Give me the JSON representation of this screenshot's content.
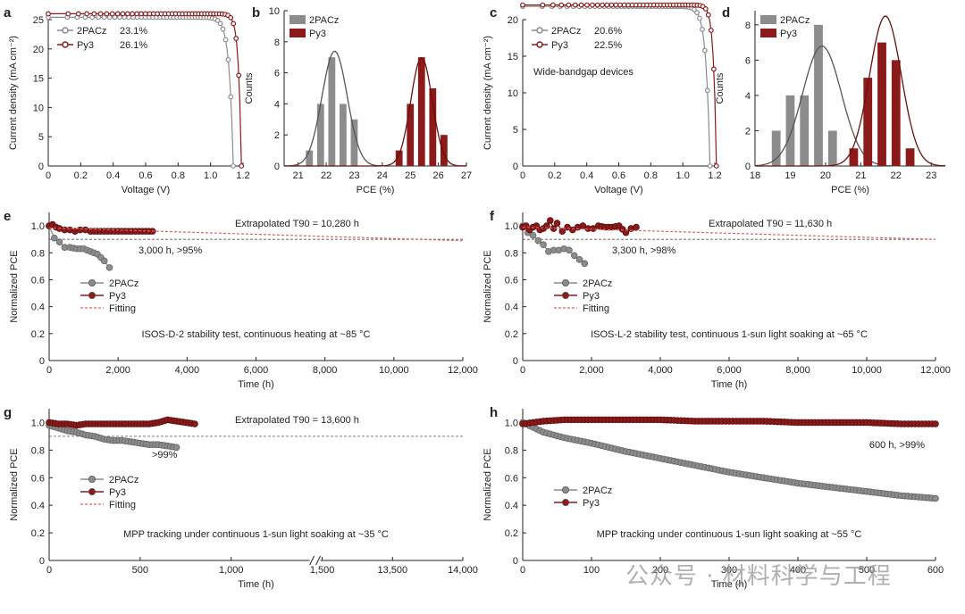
{
  "colors": {
    "gray": "#8c8c8c",
    "red": "#8b1a1a",
    "fit_red": "#e06060",
    "fit_gray": "#555555"
  },
  "watermark": "公众号 · 材料科学与工程",
  "chart_data": [
    {
      "id": "a",
      "type": "line",
      "panel_letter": "a",
      "xlabel": "Voltage (V)",
      "ylabel": "Current density (mA cm⁻²)",
      "xlim": [
        0,
        1.2
      ],
      "ylim": [
        0,
        25
      ],
      "xticks": [
        "0",
        "0.2",
        "0.4",
        "0.6",
        "0.8",
        "1.0",
        "1.2"
      ],
      "yticks": [
        "0",
        "5",
        "10",
        "15",
        "20",
        "25"
      ],
      "legend": [
        {
          "name": "2PACz",
          "value": "23.1%"
        },
        {
          "name": "Py3",
          "value": "26.1%"
        }
      ],
      "series": [
        {
          "name": "2PACz",
          "jsc": 25.4,
          "voc": 1.14,
          "n": 0.025
        },
        {
          "name": "Py3",
          "jsc": 26.0,
          "voc": 1.19,
          "n": 0.018
        }
      ]
    },
    {
      "id": "b",
      "type": "bar",
      "panel_letter": "b",
      "xlabel": "PCE (%)",
      "ylabel": "Counts",
      "xlim": [
        20.5,
        27
      ],
      "ylim": [
        0,
        10
      ],
      "xticks": [
        "21",
        "22",
        "23",
        "24",
        "25",
        "26",
        "27"
      ],
      "yticks": [
        "0",
        "2",
        "4",
        "6",
        "8",
        "10"
      ],
      "legend": [
        "2PACz",
        "Py3"
      ],
      "series": [
        {
          "name": "2PACz",
          "x": [
            21.4,
            21.8,
            22.2,
            22.6,
            23.0
          ],
          "values": [
            1,
            4,
            7,
            4,
            3
          ],
          "fit_mean": 22.3,
          "fit_sd": 0.45,
          "fit_peak": 7.4
        },
        {
          "name": "Py3",
          "x": [
            24.6,
            25.0,
            25.4,
            25.8,
            26.2
          ],
          "values": [
            1,
            4,
            7,
            5,
            2
          ],
          "fit_mean": 25.4,
          "fit_sd": 0.38,
          "fit_peak": 7.0
        }
      ]
    },
    {
      "id": "c",
      "type": "line",
      "panel_letter": "c",
      "xlabel": "Voltage (V)",
      "ylabel": "Current density (mA cm⁻²)",
      "xlim": [
        0,
        1.2
      ],
      "ylim": [
        0,
        20
      ],
      "xticks": [
        "0",
        "0.2",
        "0.4",
        "0.6",
        "0.8",
        "1.0",
        "1.2"
      ],
      "yticks": [
        "0",
        "5",
        "10",
        "15",
        "20"
      ],
      "legend": [
        {
          "name": "2PACz",
          "value": "20.6%"
        },
        {
          "name": "Py3",
          "value": "22.5%"
        }
      ],
      "annotation": "Wide-bandgap devices",
      "series": [
        {
          "name": "2PACz",
          "jsc": 21.8,
          "voc": 1.17,
          "n": 0.025
        },
        {
          "name": "Py3",
          "jsc": 22.0,
          "voc": 1.21,
          "n": 0.018
        }
      ]
    },
    {
      "id": "d",
      "type": "bar",
      "panel_letter": "d",
      "xlabel": "PCE (%)",
      "ylabel": "Counts",
      "xlim": [
        18,
        23.4
      ],
      "ylim": [
        0,
        8.8
      ],
      "xticks": [
        "18",
        "19",
        "20",
        "21",
        "22",
        "23"
      ],
      "yticks": [
        "0",
        "2",
        "4",
        "6",
        "8"
      ],
      "legend": [
        "2PACz",
        "Py3"
      ],
      "series": [
        {
          "name": "2PACz",
          "x": [
            18.6,
            19.0,
            19.4,
            19.8,
            20.2,
            20.6
          ],
          "values": [
            2,
            4,
            4,
            8,
            2,
            0
          ],
          "fit_mean": 19.9,
          "fit_sd": 0.55,
          "fit_peak": 6.8
        },
        {
          "name": "Py3",
          "x": [
            20.8,
            21.2,
            21.6,
            22.0,
            22.4
          ],
          "values": [
            1,
            5,
            7,
            6,
            1
          ],
          "fit_mean": 21.7,
          "fit_sd": 0.45,
          "fit_peak": 8.5
        }
      ]
    },
    {
      "id": "e",
      "type": "line",
      "panel_letter": "e",
      "xlabel": "Time (h)",
      "ylabel": "Normalized PCE",
      "xlim": [
        0,
        12000
      ],
      "ylim": [
        0,
        1.1
      ],
      "xticks": [
        "0",
        "2,000",
        "4,000",
        "6,000",
        "8,000",
        "10,000",
        "12,000"
      ],
      "yticks": [
        "0",
        "0.2",
        "0.4",
        "0.6",
        "0.8",
        "1.0"
      ],
      "legend": [
        "2PACz",
        "Py3",
        "Fitting"
      ],
      "annotations": [
        "Extrapolated T90 = 10,280 h",
        "3,000 h, >95%",
        "ISOS-D-2 stability test, continuous heating at ~85 °C"
      ],
      "ref_line": 0.9,
      "series": [
        {
          "name": "2PACz",
          "x": [
            0,
            150,
            300,
            450,
            600,
            800,
            1000,
            1200,
            1400,
            1600,
            1750
          ],
          "y": [
            1.0,
            0.91,
            0.88,
            0.84,
            0.84,
            0.83,
            0.83,
            0.81,
            0.79,
            0.74,
            0.69
          ]
        },
        {
          "name": "Py3",
          "x": [
            0,
            100,
            200,
            300,
            450,
            600,
            750,
            900,
            1050,
            1200,
            1400,
            1600,
            1800,
            2000,
            2200,
            2400,
            2600,
            2800,
            3000
          ],
          "y": [
            1.0,
            1.01,
            0.99,
            0.98,
            0.97,
            0.97,
            0.96,
            0.97,
            0.97,
            0.96,
            0.96,
            0.96,
            0.96,
            0.96,
            0.96,
            0.96,
            0.96,
            0.96,
            0.96
          ]
        },
        {
          "name": "Fitting",
          "x": [
            0,
            12000
          ],
          "y": [
            0.985,
            0.89
          ]
        }
      ]
    },
    {
      "id": "f",
      "type": "line",
      "panel_letter": "f",
      "xlabel": "Time (h)",
      "ylabel": "Normalized PCE",
      "xlim": [
        0,
        12000
      ],
      "ylim": [
        0,
        1.1
      ],
      "xticks": [
        "0",
        "2,000",
        "4,000",
        "6,000",
        "8,000",
        "10,000",
        "12,000"
      ],
      "yticks": [
        "0",
        "0.2",
        "0.4",
        "0.6",
        "0.8",
        "1.0"
      ],
      "legend": [
        "2PACz",
        "Py3",
        "Fitting"
      ],
      "annotations": [
        "Extrapolated T90 = 11,630 h",
        "3,300 h, >98%",
        "ISOS-L-2 stability test, continuous 1-sun light soaking at ~65 °C"
      ],
      "ref_line": 0.9,
      "series": [
        {
          "name": "2PACz",
          "x": [
            0,
            150,
            300,
            450,
            600,
            750,
            900,
            1050,
            1200,
            1350,
            1500,
            1650,
            1800
          ],
          "y": [
            1.0,
            0.95,
            0.93,
            0.89,
            0.86,
            0.81,
            0.82,
            0.82,
            0.83,
            0.82,
            0.78,
            0.75,
            0.72
          ]
        },
        {
          "name": "Py3",
          "x": [
            0,
            100,
            200,
            300,
            400,
            500,
            600,
            700,
            800,
            900,
            1000,
            1150,
            1300,
            1450,
            1600,
            1750,
            1900,
            2050,
            2200,
            2400,
            2600,
            2800,
            3000,
            3150,
            3300
          ],
          "y": [
            0.99,
            1.0,
            0.97,
            0.99,
            1.0,
            0.97,
            0.98,
            1.0,
            1.04,
            0.98,
            1.02,
            0.96,
            0.99,
            0.97,
            0.99,
            1.0,
            0.98,
            0.98,
            1.0,
            0.99,
            0.99,
            1.0,
            0.95,
            0.98,
            0.99
          ]
        },
        {
          "name": "Fitting",
          "x": [
            0,
            12000
          ],
          "y": [
            0.99,
            0.9
          ]
        }
      ]
    },
    {
      "id": "g",
      "type": "line",
      "panel_letter": "g",
      "xlabel": "Time (h)",
      "ylabel": "Normalized PCE",
      "xlim": [
        0,
        1500
      ],
      "ylim": [
        0,
        1.1
      ],
      "xticks": [
        "0",
        "500",
        "1,000",
        "1,500",
        "13,500",
        "14,000"
      ],
      "yticks": [
        "0",
        "0.2",
        "0.4",
        "0.6",
        "0.8",
        "1.0"
      ],
      "legend": [
        "2PACz",
        "Py3",
        "Fitting"
      ],
      "annotations": [
        "Extrapolated T90 = 13,600 h",
        ">99%",
        "MPP tracking under continuous 1-sun light soaking at ~35 °C"
      ],
      "axis_break": true,
      "ref_line": 0.9,
      "series": [
        {
          "name": "2PACz",
          "x": [
            0,
            50,
            100,
            150,
            200,
            250,
            300,
            350,
            400,
            450,
            500,
            550,
            600,
            650,
            700
          ],
          "y": [
            0.98,
            0.96,
            0.94,
            0.93,
            0.91,
            0.9,
            0.88,
            0.87,
            0.87,
            0.86,
            0.85,
            0.84,
            0.84,
            0.83,
            0.82
          ]
        },
        {
          "name": "Py3",
          "x": [
            0,
            50,
            100,
            150,
            200,
            250,
            300,
            350,
            400,
            450,
            500,
            550,
            600,
            650,
            700,
            750,
            800
          ],
          "y": [
            1.0,
            0.99,
            0.99,
            0.98,
            0.99,
            0.99,
            0.99,
            0.99,
            0.99,
            0.99,
            0.99,
            0.99,
            1.0,
            1.02,
            1.01,
            1.0,
            0.99
          ]
        }
      ]
    },
    {
      "id": "h",
      "type": "line",
      "panel_letter": "h",
      "xlabel": "Time (h)",
      "ylabel": "Normalized PCE",
      "xlim": [
        0,
        600
      ],
      "ylim": [
        0,
        1.1
      ],
      "xticks": [
        "0",
        "100",
        "200",
        "300",
        "400",
        "500",
        "600"
      ],
      "yticks": [
        "0",
        "0.2",
        "0.4",
        "0.6",
        "0.8",
        "1.0"
      ],
      "legend": [
        "2PACz",
        "Py3"
      ],
      "annotations": [
        "600 h, >99%",
        "MPP tracking under continuous 1-sun light soaking at ~55 °C"
      ],
      "series": [
        {
          "name": "2PACz",
          "x": [
            0,
            30,
            60,
            100,
            150,
            200,
            250,
            300,
            350,
            400,
            450,
            500,
            550,
            600
          ],
          "y": [
            1.0,
            0.93,
            0.89,
            0.85,
            0.79,
            0.74,
            0.69,
            0.64,
            0.6,
            0.56,
            0.53,
            0.5,
            0.47,
            0.45
          ]
        },
        {
          "name": "Py3",
          "x": [
            0,
            30,
            60,
            100,
            150,
            200,
            250,
            300,
            350,
            400,
            450,
            500,
            550,
            600
          ],
          "y": [
            0.99,
            1.01,
            1.02,
            1.02,
            1.02,
            1.02,
            1.01,
            1.01,
            1.01,
            1.0,
            1.0,
            1.0,
            0.99,
            0.99
          ]
        }
      ]
    }
  ]
}
